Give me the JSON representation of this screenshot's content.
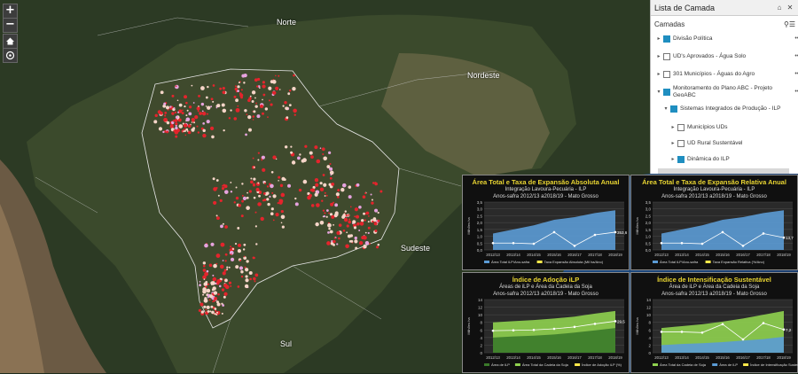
{
  "map": {
    "labels": {
      "norte": "Norte",
      "nordeste": "Nordeste",
      "sudeste": "Sudeste",
      "sul": "Sul"
    },
    "zoom_in": "+",
    "zoom_out": "−"
  },
  "layer_list": {
    "title": "Lista de Camada",
    "subtitle": "Camadas",
    "items": [
      {
        "label": "Divisão Política",
        "checked": true,
        "expander": "▸"
      },
      {
        "label": "UD's Aprovados - Água Solo",
        "checked": false,
        "expander": "▸"
      },
      {
        "label": "301 Municípios - Águas do Agro",
        "checked": false,
        "expander": "▸"
      },
      {
        "label": "Monitoramento do Plano ABC - Projeto GeoABC",
        "checked": true,
        "expander": "▾"
      },
      {
        "label": "Sistemas Integrados de Produção - ILP",
        "checked": true,
        "expander": "▾"
      },
      {
        "label": "Municípios UDs",
        "checked": false,
        "expander": "▸"
      },
      {
        "label": "UD Rural Sustentável",
        "checked": false,
        "expander": "▸"
      },
      {
        "label": "Dinâmica do ILP",
        "checked": true,
        "expander": "▸"
      }
    ]
  },
  "panels": [
    {
      "title": "Área Total e Taxa de Expansão Absoluta Anual",
      "sub1": "Integração Lavoura-Pecuária - ILP",
      "sub2": "Anos-safra 2012/13 a2018/19 - Mato Grosso",
      "color": "#5b9bd5"
    },
    {
      "title": "Área Total e Taxa de Expansão Relativa Anual",
      "sub1": "Integração Lavoura-Pecuária - ILP",
      "sub2": "Anos-safra 2012/13 a2018/19 - Mato Grosso",
      "color": "#5b9bd5"
    },
    {
      "title": "Índice de Adoção iLP",
      "sub1": "Áreas de iLP e Área da Cadeia da Soja",
      "sub2": "Anos-safra 2012/13 a2018/19 - Mato Grosso",
      "color": "#70ad47"
    },
    {
      "title": "Índice de Intensificação Sustentável",
      "sub1": "Área de iLP e Área da Cadeia da Soja",
      "sub2": "Anos-safra 2012/13 a2018/19 - Mato Grosso",
      "color": "#70ad47"
    }
  ],
  "chart_data": [
    {
      "type": "bar",
      "categories": [
        "2012/13",
        "2013/14",
        "2014/15",
        "2015/16",
        "2016/17",
        "2017/18",
        "2018/19"
      ],
      "ylim": [
        0,
        3.5
      ],
      "yticks": [
        "0,0",
        "0,5",
        "1,0",
        "1,5",
        "2,0",
        "2,5",
        "3,0",
        "3,5"
      ],
      "ylabel": "Milhões ha",
      "series": [
        {
          "name": "Área Total iLP/Ano-safra",
          "type": "area",
          "values": [
            1.2,
            1.5,
            1.8,
            2.2,
            2.4,
            2.7,
            2.9
          ]
        },
        {
          "name": "Taxa Expansão Absoluta (Mil ha/Ano)",
          "type": "line",
          "values": [
            0.5,
            0.5,
            0.45,
            1.3,
            0.3,
            1.1,
            1.3
          ]
        }
      ],
      "labels": [
        "",
        "",
        "",
        "",
        "",
        "",
        "353,6"
      ]
    },
    {
      "type": "bar",
      "categories": [
        "2012/13",
        "2013/14",
        "2014/15",
        "2015/16",
        "2016/17",
        "2017/18",
        "2018/19"
      ],
      "ylim": [
        0,
        3.5
      ],
      "yticks": [
        "0,0",
        "0,5",
        "1,0",
        "1,5",
        "2,0",
        "2,5",
        "3,0",
        "3,5"
      ],
      "ylabel": "Milhões ha",
      "series": [
        {
          "name": "Área Total iLP/Ano-safra",
          "type": "area",
          "values": [
            1.2,
            1.5,
            1.8,
            2.2,
            2.4,
            2.7,
            2.9
          ]
        },
        {
          "name": "Taxa Expansão Relativa (%/Ano)",
          "type": "line",
          "values": [
            0.5,
            0.5,
            0.45,
            1.3,
            0.3,
            1.2,
            0.9
          ]
        }
      ],
      "labels": [
        "",
        "",
        "",
        "",
        "",
        "",
        "13,7"
      ]
    },
    {
      "type": "bar",
      "categories": [
        "2012/13",
        "2013/14",
        "2014/15",
        "2015/16",
        "2016/17",
        "2017/18",
        "2018/19"
      ],
      "ylim": [
        0,
        14
      ],
      "yticks": [
        "0",
        "2",
        "4",
        "6",
        "8",
        "10",
        "12",
        "14"
      ],
      "ylabel": "Milhões ha",
      "series": [
        {
          "name": "Área de iLP",
          "type": "area",
          "values": [
            4,
            4.3,
            4.5,
            4.8,
            5.3,
            5.9,
            6.5
          ]
        },
        {
          "name": "Área Total da Cadeia da Soja",
          "type": "area",
          "values": [
            8,
            8.3,
            8.6,
            9,
            9.5,
            10.3,
            11
          ]
        },
        {
          "name": "Índice de Adoção iLP (%)",
          "type": "line",
          "values": [
            5.8,
            5.9,
            6,
            6.3,
            6.8,
            7.6,
            8.3
          ]
        }
      ],
      "labels": [
        "",
        "",
        "",
        "",
        "",
        "",
        "29,5"
      ]
    },
    {
      "type": "bar",
      "categories": [
        "2012/13",
        "2013/14",
        "2014/15",
        "2015/16",
        "2016/17",
        "2017/18",
        "2018/19"
      ],
      "ylim": [
        0,
        14
      ],
      "yticks": [
        "0",
        "2",
        "4",
        "6",
        "8",
        "10",
        "12",
        "14"
      ],
      "ylabel": "Milhões ha",
      "series": [
        {
          "name": "Área Total da Cadeia de Soja",
          "type": "area",
          "values": [
            6.5,
            7,
            7.5,
            8.2,
            9,
            10,
            11
          ]
        },
        {
          "name": "Área de iLP",
          "type": "area",
          "values": [
            2,
            2.3,
            2.5,
            2.8,
            3.2,
            3.6,
            4.2
          ]
        },
        {
          "name": "Índice de Intensificação Sustentável (%)",
          "type": "line",
          "values": [
            5.5,
            5.5,
            5.3,
            7.5,
            3.5,
            7.8,
            6.1
          ]
        }
      ],
      "labels": [
        "",
        "",
        "",
        "",
        "",
        "",
        "7,2"
      ]
    }
  ]
}
